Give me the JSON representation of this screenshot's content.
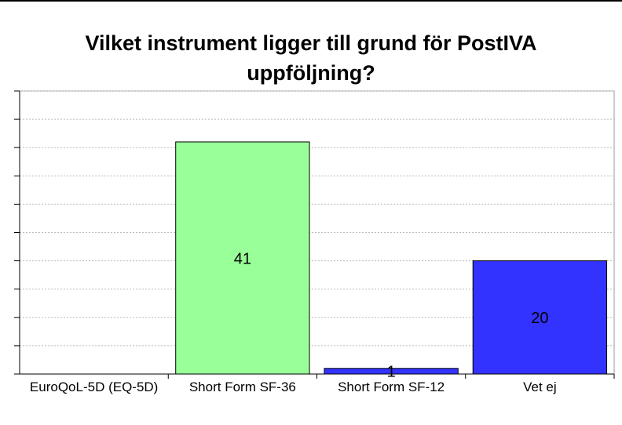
{
  "chart_data": {
    "type": "bar",
    "title": "Vilket instrument ligger till grund för PostIVA uppföljning?",
    "categories": [
      "EuroQoL-5D (EQ-5D)",
      "Short Form SF-36",
      "Short Form SF-12",
      "Vet ej"
    ],
    "values": [
      null,
      41,
      1,
      20
    ],
    "colors": [
      "#3333ff",
      "#99ff99",
      "#3333ff",
      "#3333ff"
    ],
    "ylim": [
      0,
      50
    ],
    "yticks": [
      0,
      5,
      10,
      15,
      20,
      25,
      30,
      35,
      40,
      45,
      50
    ],
    "grid": true
  }
}
